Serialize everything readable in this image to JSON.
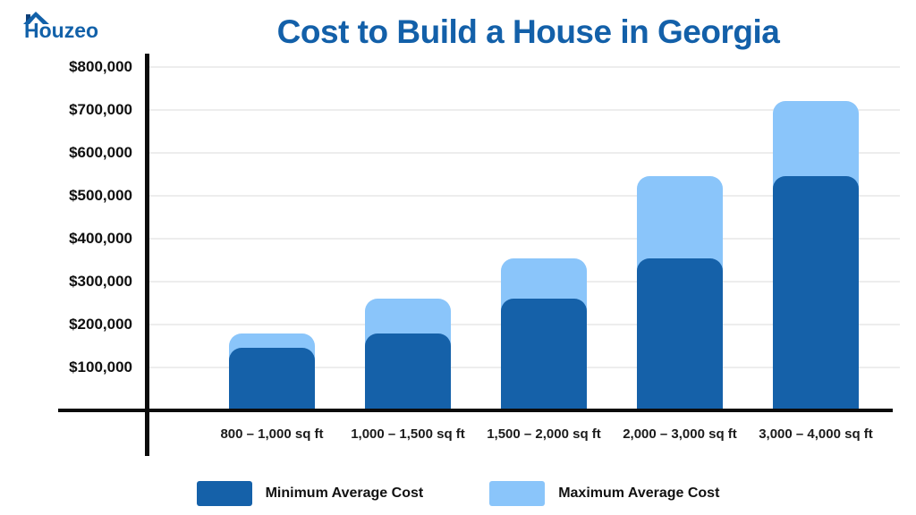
{
  "logo": {
    "text": "Houzeo",
    "color": "#1261A9"
  },
  "title": "Cost to Build a House in Georgia",
  "chart_data": {
    "type": "bar",
    "title": "Cost to Build a House in Georgia",
    "categories": [
      "800 – 1,000 sq ft",
      "1,000 – 1,500 sq ft",
      "1,500 – 2,000 sq ft",
      "2,000 – 3,000 sq ft",
      "3,000 – 4,000 sq ft"
    ],
    "series": [
      {
        "name": "Minimum Average Cost",
        "color": "#1561A9",
        "values": [
          145000,
          180000,
          260000,
          355000,
          545000
        ]
      },
      {
        "name": "Maximum Average Cost",
        "color": "#8AC5FA",
        "values": [
          180000,
          260000,
          355000,
          545000,
          720000
        ]
      }
    ],
    "xlabel": "",
    "ylabel": "",
    "y_ticks": [
      "$800,000",
      "$700,000",
      "$600,000",
      "$500,000",
      "$400,000",
      "$300,000",
      "$200,000",
      "$100,000"
    ],
    "ylim": [
      0,
      800000
    ],
    "grid": true,
    "bar_style": "overlay",
    "legend_position": "bottom"
  },
  "legend": {
    "items": [
      {
        "label": "Minimum Average Cost",
        "color": "#1561A9"
      },
      {
        "label": "Maximum Average Cost",
        "color": "#8AC5FA"
      }
    ]
  },
  "colors": {
    "title": "#1360A9",
    "axis": "#0b0b0b",
    "gridline": "#ededed",
    "min_bar": "#1561A9",
    "max_bar": "#8AC5FA"
  }
}
